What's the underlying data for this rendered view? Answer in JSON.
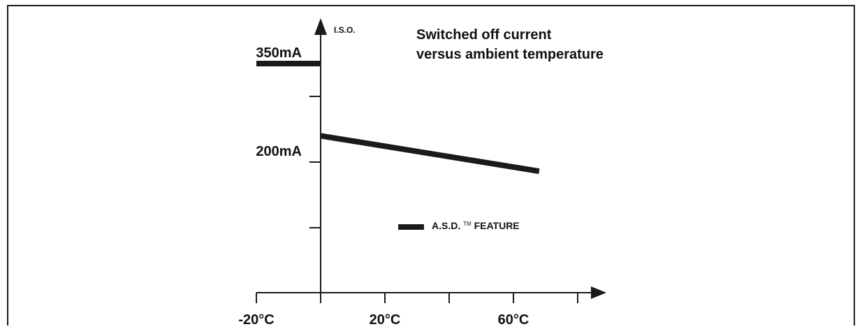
{
  "chart_data": {
    "type": "line",
    "title": "Switched off current versus ambient temperature",
    "title_lines": [
      "Switched off current",
      "versus ambient temperature"
    ],
    "ylabel": "I.S.O.",
    "xlabel": "",
    "x_tick_labels": [
      {
        "x": -20,
        "label": "-20°C"
      },
      {
        "x": 20,
        "label": "20°C"
      },
      {
        "x": 60,
        "label": "60°C"
      }
    ],
    "x_ticks": [
      -20,
      0,
      20,
      40,
      60,
      80
    ],
    "xlim": [
      -20,
      80
    ],
    "y_tick_labels": [
      {
        "y": 350,
        "label": "350mA"
      },
      {
        "y": 200,
        "label": "200mA"
      }
    ],
    "y_ticks": [
      100,
      200,
      300
    ],
    "ylim": [
      20,
      400
    ],
    "series": [
      {
        "name": "",
        "x": [
          -20,
          0
        ],
        "y": [
          350,
          350
        ],
        "color": "#1a1a1a"
      },
      {
        "name": "A.S.D.™ FEATURE",
        "x": [
          0,
          68
        ],
        "y": [
          240,
          186
        ],
        "color": "#1a1a1a"
      }
    ],
    "legend": {
      "position": "center",
      "label_main": "A.S.D.",
      "label_tm": "TM",
      "label_rest": " FEATURE"
    },
    "grid": false
  }
}
